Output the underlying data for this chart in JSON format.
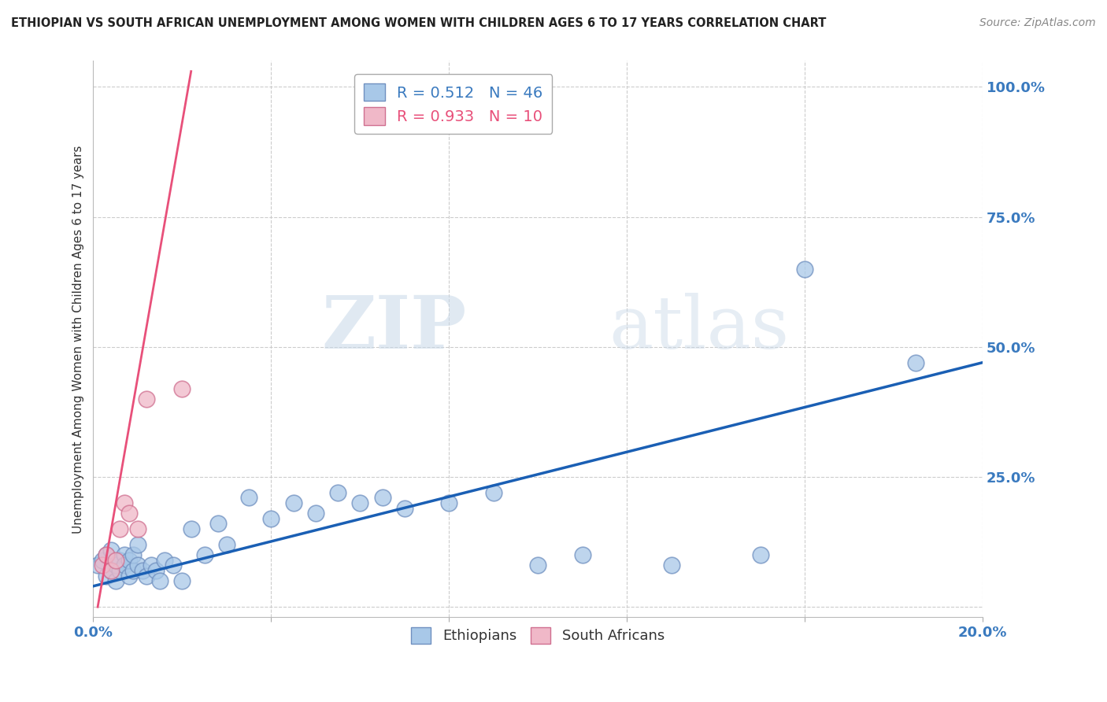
{
  "title": "ETHIOPIAN VS SOUTH AFRICAN UNEMPLOYMENT AMONG WOMEN WITH CHILDREN AGES 6 TO 17 YEARS CORRELATION CHART",
  "source": "Source: ZipAtlas.com",
  "ylabel": "Unemployment Among Women with Children Ages 6 to 17 years",
  "xlim": [
    0.0,
    0.2
  ],
  "ylim": [
    -0.02,
    1.05
  ],
  "xticks": [
    0.0,
    0.04,
    0.08,
    0.12,
    0.16,
    0.2
  ],
  "yticks": [
    0.0,
    0.25,
    0.5,
    0.75,
    1.0
  ],
  "watermark_zip": "ZIP",
  "watermark_atlas": "atlas",
  "ethiopians_color": "#a8c8e8",
  "south_africans_color": "#f0b8c8",
  "ethiopians_edge": "#7090c0",
  "south_africans_edge": "#d07090",
  "regression_blue_color": "#1a5fb4",
  "regression_pink_color": "#e8507a",
  "background_color": "#ffffff",
  "grid_color": "#cccccc",
  "title_color": "#222222",
  "axis_label_color": "#333333",
  "tick_label_color": "#3a7abf",
  "legend_r1_color": "#3a7abf",
  "legend_r2_color": "#e8507a",
  "ethiopians_x": [
    0.001,
    0.002,
    0.003,
    0.003,
    0.004,
    0.004,
    0.005,
    0.005,
    0.006,
    0.006,
    0.007,
    0.007,
    0.008,
    0.008,
    0.009,
    0.009,
    0.01,
    0.01,
    0.011,
    0.012,
    0.013,
    0.014,
    0.015,
    0.016,
    0.018,
    0.02,
    0.022,
    0.025,
    0.028,
    0.03,
    0.035,
    0.04,
    0.045,
    0.05,
    0.055,
    0.06,
    0.065,
    0.07,
    0.08,
    0.09,
    0.1,
    0.11,
    0.13,
    0.15,
    0.16,
    0.185
  ],
  "ethiopians_y": [
    0.08,
    0.09,
    0.06,
    0.1,
    0.07,
    0.11,
    0.05,
    0.08,
    0.09,
    0.07,
    0.1,
    0.08,
    0.06,
    0.09,
    0.07,
    0.1,
    0.08,
    0.12,
    0.07,
    0.06,
    0.08,
    0.07,
    0.05,
    0.09,
    0.08,
    0.05,
    0.15,
    0.1,
    0.16,
    0.12,
    0.21,
    0.17,
    0.2,
    0.18,
    0.22,
    0.2,
    0.21,
    0.19,
    0.2,
    0.22,
    0.08,
    0.1,
    0.08,
    0.1,
    0.65,
    0.47
  ],
  "south_africans_x": [
    0.002,
    0.003,
    0.004,
    0.005,
    0.006,
    0.007,
    0.008,
    0.01,
    0.012,
    0.02
  ],
  "south_africans_y": [
    0.08,
    0.1,
    0.07,
    0.09,
    0.15,
    0.2,
    0.18,
    0.15,
    0.4,
    0.42
  ],
  "blue_line_x": [
    0.0,
    0.2
  ],
  "blue_line_y": [
    0.04,
    0.47
  ],
  "pink_line_x": [
    0.001,
    0.022
  ],
  "pink_line_y": [
    0.0,
    1.03
  ]
}
